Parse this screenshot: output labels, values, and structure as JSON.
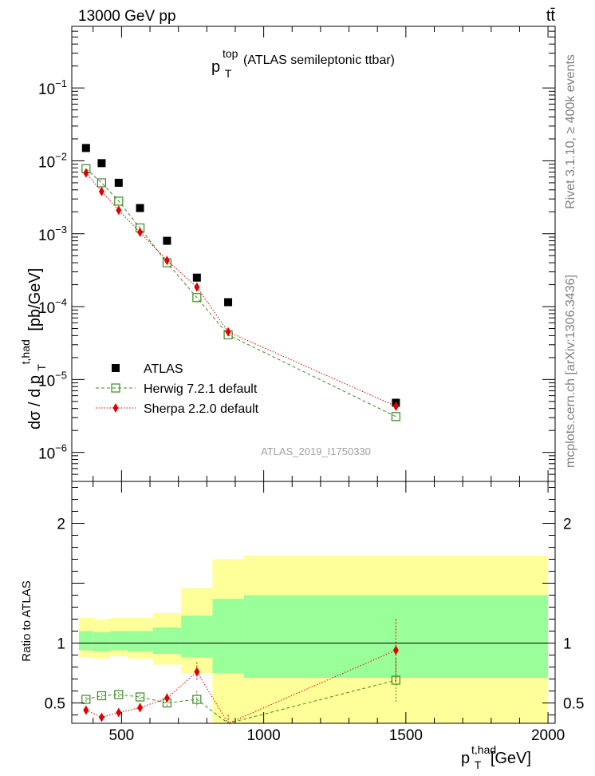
{
  "header": {
    "left": "13000 GeV pp",
    "right": "tt̄"
  },
  "side_labels": {
    "rivet": "Rivet 3.1.10, ≥ 400k events",
    "mcplots": "mcplots.cern.ch [arXiv:1306.3436]"
  },
  "chart_data": [
    {
      "type": "scatter",
      "title": "(ATLAS semileptonic ttbar)",
      "title_symbol": "p",
      "title_symbol_sub": "T",
      "title_symbol_sup": "top",
      "watermark": "ATLAS_2019_I1750330",
      "ylabel": "dσ / d p",
      "ylabel_sub": "T",
      "ylabel_sup": "t,had",
      "ylabel_unit": "[pb/GeV]",
      "yscale": "log",
      "ylim": [
        4e-07,
        0.7
      ],
      "yticks": [
        {
          "value": 1e-06,
          "base": "10",
          "exp": "−6"
        },
        {
          "value": 1e-05,
          "base": "10",
          "exp": "−5"
        },
        {
          "value": 0.0001,
          "base": "10",
          "exp": "−4"
        },
        {
          "value": 0.001,
          "base": "10",
          "exp": "−3"
        },
        {
          "value": 0.01,
          "base": "10",
          "exp": "−2"
        },
        {
          "value": 0.1,
          "base": "10",
          "exp": "−1"
        }
      ],
      "xlim": [
        325,
        2025
      ],
      "legend_position": "bottom-left",
      "series": [
        {
          "name": "ATLAS",
          "marker": "square-filled",
          "color": "#000000",
          "x": [
            375,
            430,
            490,
            565,
            660,
            765,
            875,
            1465
          ],
          "y": [
            0.015,
            0.0093,
            0.005,
            0.00225,
            0.0008,
            0.00025,
            0.000115,
            4.8e-06
          ]
        },
        {
          "name": "Herwig 7.2.1 default",
          "marker": "square-open",
          "color": "#3a8a1e",
          "line": "dashed",
          "x": [
            375,
            430,
            490,
            565,
            660,
            765,
            875,
            1465
          ],
          "y": [
            0.0078,
            0.005,
            0.0028,
            0.0012,
            0.0004,
            0.000133,
            4.1e-05,
            3.1e-06
          ]
        },
        {
          "name": "Sherpa 2.2.0 default",
          "marker": "diamond-filled",
          "color": "#e00000",
          "line": "dotted",
          "x": [
            375,
            430,
            490,
            565,
            660,
            765,
            875,
            1465
          ],
          "y": [
            0.0068,
            0.0038,
            0.0021,
            0.00105,
            0.00043,
            0.000185,
            4.5e-05,
            4.3e-06
          ]
        }
      ]
    },
    {
      "type": "scatter",
      "ylabel": "Ratio to ATLAS",
      "xlabel": "p",
      "xlabel_sub": "T",
      "xlabel_sup": "t,had",
      "xlabel_unit": "[GeV]",
      "ylim": [
        0.33,
        2.35
      ],
      "yticks": [
        0.5,
        1,
        2
      ],
      "ytick_labels": [
        "0.5",
        "1",
        "2"
      ],
      "xlim": [
        325,
        2025
      ],
      "xticks": [
        500,
        1000,
        1500,
        2000
      ],
      "xtick_labels": [
        "500",
        "1000",
        "1500",
        "2000"
      ],
      "reference_line": 1,
      "bands": {
        "edges": [
          350,
          400,
          460,
          520,
          610,
          710,
          820,
          930,
          2000
        ],
        "yellow_low": [
          0.88,
          0.87,
          0.89,
          0.87,
          0.82,
          0.75,
          0.33,
          0.33
        ],
        "yellow_high": [
          1.21,
          1.2,
          1.21,
          1.21,
          1.25,
          1.46,
          1.7,
          1.73
        ],
        "green_low": [
          0.94,
          0.93,
          0.94,
          0.93,
          0.91,
          0.88,
          0.75,
          0.71
        ],
        "green_high": [
          1.1,
          1.09,
          1.1,
          1.1,
          1.13,
          1.23,
          1.37,
          1.4
        ]
      },
      "series": [
        {
          "name": "Herwig 7.2.1 default",
          "color": "#3a8a1e",
          "x": [
            375,
            430,
            490,
            565,
            660,
            765,
            875,
            1465
          ],
          "y": [
            0.53,
            0.56,
            0.57,
            0.55,
            0.5,
            0.53,
            0.3,
            0.69
          ],
          "err": [
            0.02,
            0.02,
            0.02,
            0.02,
            0.04,
            0.07,
            0.1,
            0.18
          ]
        },
        {
          "name": "Sherpa 2.2.0 default",
          "color": "#e00000",
          "x": [
            375,
            430,
            490,
            565,
            660,
            765,
            875,
            1465
          ],
          "y": [
            0.44,
            0.38,
            0.42,
            0.46,
            0.54,
            0.76,
            0.3,
            0.94
          ],
          "err": [
            0.02,
            0.02,
            0.03,
            0.04,
            0.04,
            0.08,
            0.1,
            0.26
          ]
        }
      ]
    }
  ]
}
